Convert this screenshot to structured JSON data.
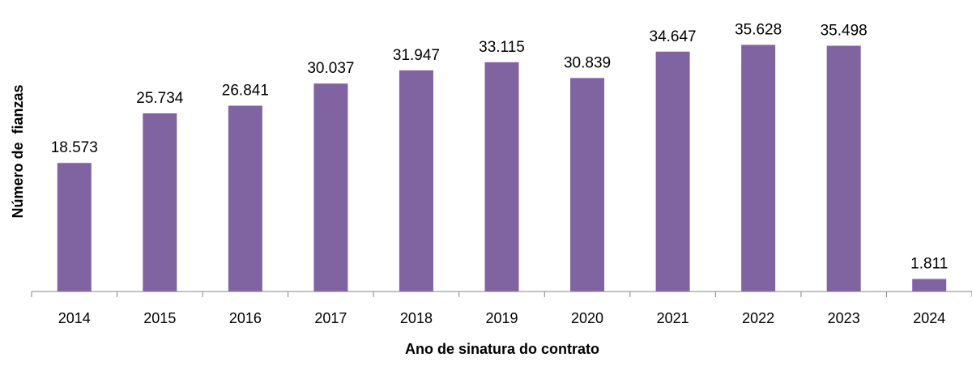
{
  "chart_data": {
    "type": "bar",
    "title": "",
    "xlabel": "Ano de sinatura do contrato",
    "ylabel": "Número de  fianzas",
    "categories": [
      "2014",
      "2015",
      "2016",
      "2017",
      "2018",
      "2019",
      "2020",
      "2021",
      "2022",
      "2023",
      "2024"
    ],
    "values": [
      18573,
      25734,
      26841,
      30037,
      31947,
      33115,
      30839,
      34647,
      35628,
      35498,
      1811
    ],
    "data_labels": [
      "18.573",
      "25.734",
      "26.841",
      "30.037",
      "31.947",
      "33.115",
      "30.839",
      "34.647",
      "35.628",
      "35.498",
      "1.811"
    ],
    "ylim": [
      0,
      40000
    ],
    "grid": false,
    "legend": "none",
    "bar_color": "#8064A2"
  }
}
